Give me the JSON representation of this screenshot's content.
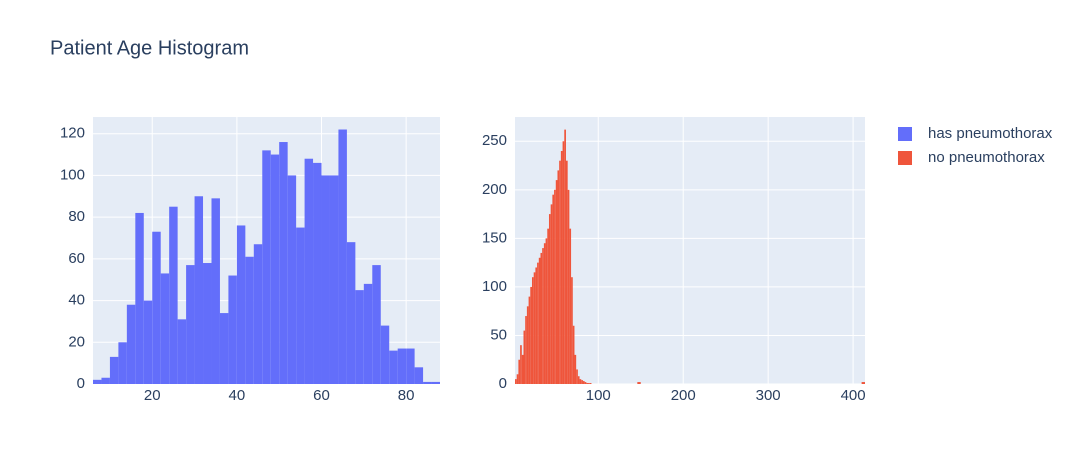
{
  "chart_data": [
    {
      "type": "histogram",
      "title": "Patient Age Histogram",
      "bins": [
        6,
        8,
        10,
        12,
        14,
        16,
        18,
        20,
        22,
        24,
        26,
        28,
        30,
        32,
        34,
        36,
        38,
        40,
        42,
        44,
        46,
        48,
        50,
        52,
        54,
        56,
        58,
        60,
        62,
        64,
        66,
        68,
        70,
        72,
        74,
        76,
        78,
        80,
        82,
        84,
        86,
        88
      ],
      "series": [
        {
          "name": "has pneumothorax",
          "color": "#636efa",
          "values": [
            2,
            3,
            13,
            20,
            38,
            82,
            40,
            73,
            53,
            85,
            31,
            57,
            90,
            58,
            89,
            34,
            52,
            76,
            61,
            67,
            112,
            110,
            116,
            100,
            75,
            108,
            106,
            100,
            100,
            122,
            68,
            45,
            48,
            57,
            28,
            16,
            17,
            17,
            8,
            1,
            1
          ]
        }
      ],
      "xlim": [
        6,
        88
      ],
      "xticks": [
        20,
        40,
        60,
        80
      ],
      "ylim": [
        0,
        128
      ],
      "yticks": [
        0,
        20,
        40,
        60,
        80,
        100,
        120
      ],
      "grid": true
    },
    {
      "type": "histogram",
      "bins": [
        2,
        4,
        6,
        8,
        10,
        12,
        14,
        16,
        18,
        20,
        22,
        24,
        26,
        28,
        30,
        32,
        34,
        36,
        38,
        40,
        42,
        44,
        46,
        48,
        50,
        52,
        54,
        56,
        58,
        60,
        62,
        64,
        66,
        68,
        70,
        72,
        74,
        76,
        78,
        80,
        82,
        84,
        86,
        88,
        90,
        92,
        146,
        150,
        410,
        414
      ],
      "series": [
        {
          "name": "no pneumothorax",
          "color": "#EF553B",
          "values": [
            5,
            10,
            25,
            40,
            30,
            55,
            70,
            80,
            90,
            100,
            110,
            115,
            120,
            125,
            130,
            135,
            140,
            145,
            150,
            160,
            175,
            185,
            195,
            200,
            210,
            220,
            230,
            240,
            250,
            262,
            230,
            200,
            160,
            110,
            60,
            30,
            15,
            8,
            5,
            4,
            3,
            2,
            1,
            1,
            1,
            0,
            2,
            0,
            2
          ]
        }
      ],
      "xlim": [
        2,
        414
      ],
      "xticks": [
        100,
        200,
        300,
        400
      ],
      "ylim": [
        0,
        275
      ],
      "yticks": [
        0,
        50,
        100,
        150,
        200,
        250
      ],
      "grid": true
    }
  ]
}
